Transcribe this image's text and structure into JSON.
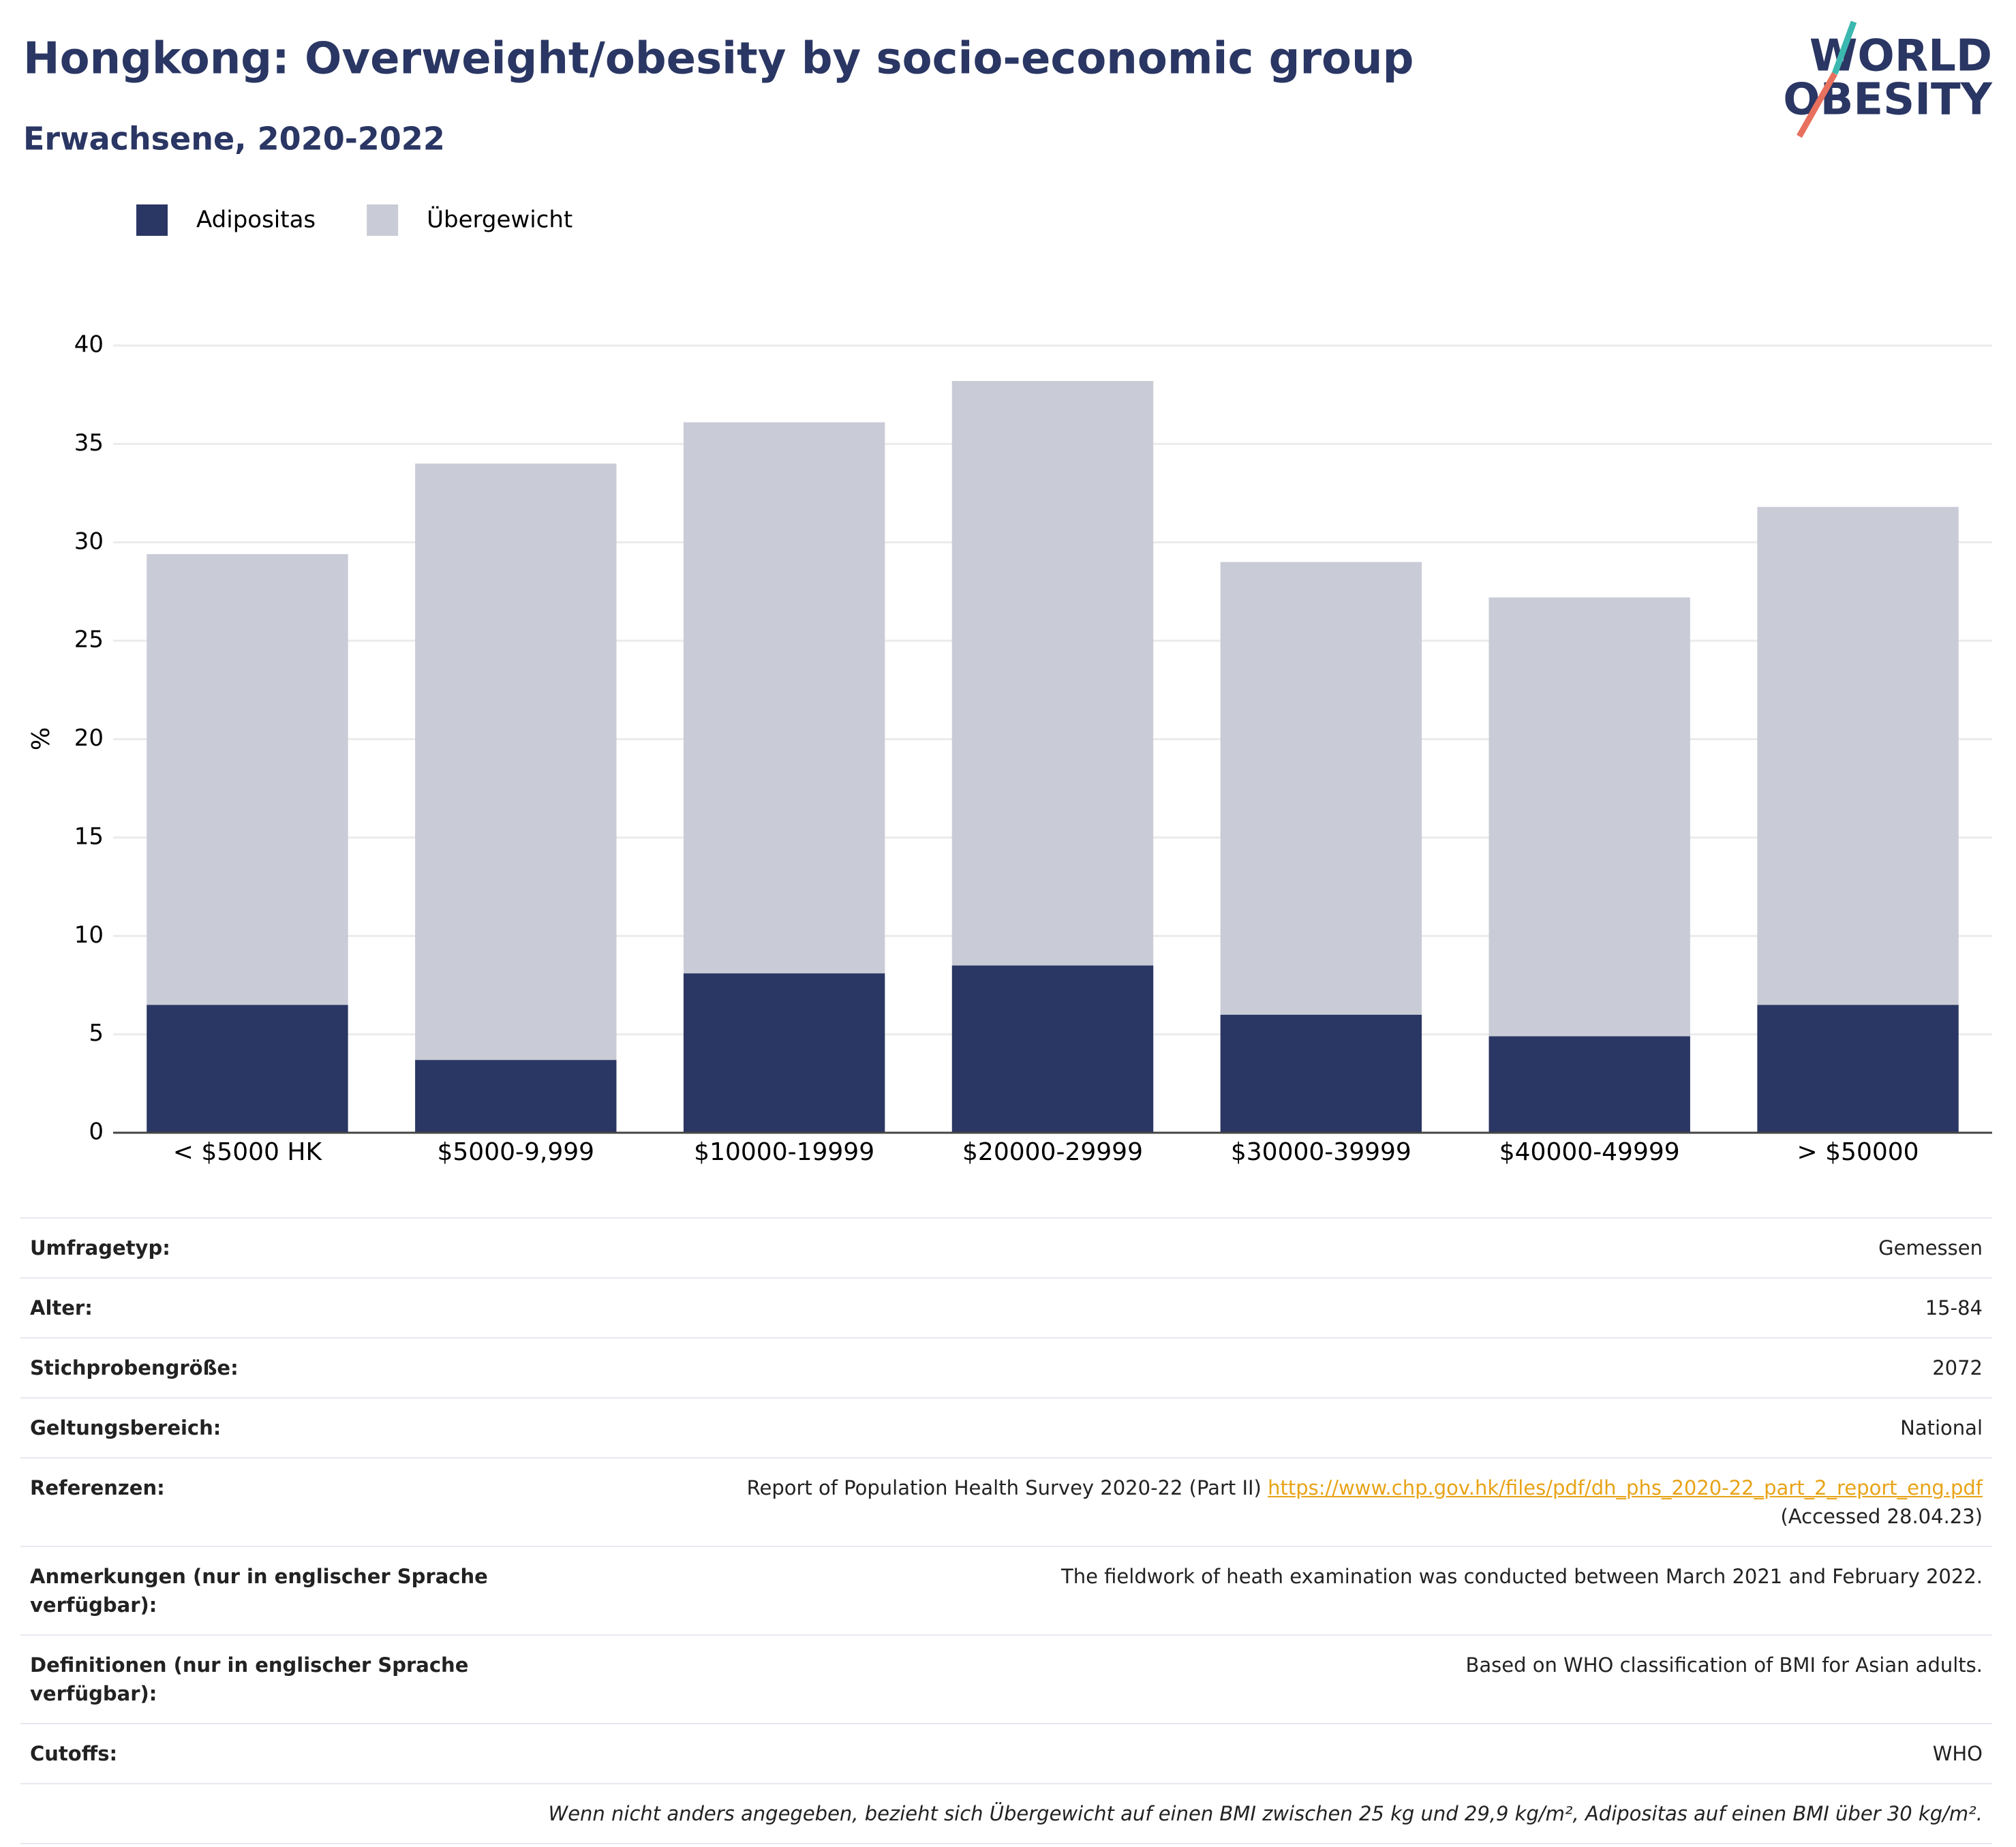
{
  "chart_data": {
    "type": "bar",
    "stacked": true,
    "title": "Hongkong: Overweight/obesity by socio-economic group",
    "subtitle": "Erwachsene, 2020-2022",
    "logo": [
      "WORLD",
      "OBESITY"
    ],
    "ylabel": "%",
    "categories": [
      "< $5000 HK",
      "$5000-9,999",
      "$10000-19999",
      "$20000-29999",
      "$30000-39999",
      "$40000-49999",
      "> $50000"
    ],
    "series": [
      {
        "name": "Adipositas",
        "color": "#2a3663",
        "values": [
          6.5,
          3.7,
          8.1,
          8.5,
          6.0,
          4.9,
          6.5
        ]
      },
      {
        "name": "Übergewicht",
        "color": "#c9cbd6",
        "values": [
          22.9,
          30.3,
          28.0,
          29.7,
          23.0,
          22.3,
          25.3
        ]
      }
    ],
    "ylim": [
      0,
      40
    ],
    "yticks": [
      0,
      5,
      10,
      15,
      20,
      25,
      30,
      35,
      40
    ],
    "grid": true,
    "legend": "top-left"
  },
  "table": {
    "rows": [
      {
        "label": "Umfragetyp:",
        "value": "Gemessen"
      },
      {
        "label": "Alter:",
        "value": "15-84"
      },
      {
        "label": "Stichprobengröße:",
        "value": "2072"
      },
      {
        "label": "Geltungsbereich:",
        "value": "National"
      },
      {
        "label": "Referenzen:",
        "value": "Report of Population Health Survey 2020-22 (Part II)",
        "link": "https://www.chp.gov.hk/files/pdf/dh_phs_2020-22_part_2_report_eng.pdf",
        "note": "(Accessed 28.04.23)"
      },
      {
        "label": "Anmerkungen (nur in englischer Sprache verfügbar):",
        "value": "The fieldwork of heath examination was conducted between March 2021 and February 2022."
      },
      {
        "label": "Definitionen (nur in englischer Sprache verfügbar):",
        "value": "Based on WHO classification of BMI for Asian adults."
      },
      {
        "label": "Cutoffs:",
        "value": "WHO"
      }
    ],
    "footnote": "Wenn nicht anders angegeben, bezieht sich Übergewicht auf einen BMI zwischen 25 kg und 29,9 kg/m², Adipositas auf einen BMI über 30 kg/m²."
  }
}
